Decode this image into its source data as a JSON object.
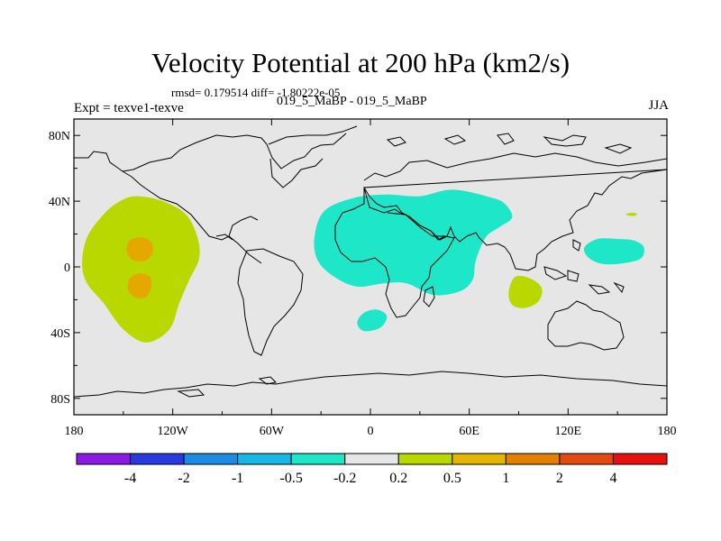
{
  "header": {
    "title": "Velocity Potential at 200 hPa (km2/s)",
    "stats": "rmsd= 0.179514  diff= -1.80222e-05",
    "left_label": "Expt = texve1-texve",
    "center_label": "019_5_MaBP - 019_5_MaBP",
    "right_label": "JJA"
  },
  "colors": {
    "map_bg": "#e6e6e6",
    "coast": "#000000",
    "cyan": "#1ee6c8",
    "yellowgreen": "#b8d800",
    "orange": "#e4a800"
  },
  "chart_data": {
    "type": "contour-map",
    "title": "Velocity Potential at 200 hPa (km2/s)",
    "variable": "velocity potential difference at 200 hPa",
    "units": "km2/s",
    "season": "JJA",
    "xlim": [
      -180,
      180
    ],
    "ylim": [
      -90,
      90
    ],
    "x_ticks": [
      {
        "lon": -180,
        "label": "180"
      },
      {
        "lon": -120,
        "label": "120W"
      },
      {
        "lon": -60,
        "label": "60W"
      },
      {
        "lon": 0,
        "label": "0"
      },
      {
        "lon": 60,
        "label": "60E"
      },
      {
        "lon": 120,
        "label": "120E"
      },
      {
        "lon": 180,
        "label": "180"
      }
    ],
    "y_ticks": [
      {
        "lat": 80,
        "label": "80N"
      },
      {
        "lat": 40,
        "label": "40N"
      },
      {
        "lat": 0,
        "label": "0"
      },
      {
        "lat": -40,
        "label": "40S"
      },
      {
        "lat": -80,
        "label": "80S"
      }
    ],
    "colorbar": {
      "labels": [
        "-4",
        "-2",
        "-1",
        "-0.5",
        "-0.2",
        "0.2",
        "0.5",
        "1",
        "2",
        "4"
      ],
      "colors": [
        "#8c1ae6",
        "#2a3ae0",
        "#1a8ce6",
        "#18b8e6",
        "#1ee6c8",
        "#e6e6e6",
        "#b8d800",
        "#e4b400",
        "#e48000",
        "#e44a10",
        "#e61010"
      ]
    },
    "regions": [
      {
        "name": "central-pacific-positive",
        "level": "0.2 to 0.5",
        "color": "#b8d800",
        "outline": [
          [
            -142,
            43
          ],
          [
            -126,
            40
          ],
          [
            -112,
            32
          ],
          [
            -105,
            18
          ],
          [
            -104,
            5
          ],
          [
            -110,
            -8
          ],
          [
            -116,
            -22
          ],
          [
            -122,
            -38
          ],
          [
            -136,
            -46
          ],
          [
            -150,
            -38
          ],
          [
            -162,
            -22
          ],
          [
            -172,
            -10
          ],
          [
            -175,
            2
          ],
          [
            -172,
            18
          ],
          [
            -162,
            32
          ],
          [
            -152,
            40
          ]
        ]
      },
      {
        "name": "pacific-max-north",
        "level": "0.5 to 1",
        "color": "#e4a800",
        "outline": [
          [
            -140,
            18
          ],
          [
            -134,
            16
          ],
          [
            -132,
            10
          ],
          [
            -136,
            4
          ],
          [
            -144,
            4
          ],
          [
            -148,
            10
          ],
          [
            -146,
            16
          ]
        ]
      },
      {
        "name": "pacific-max-south",
        "level": "0.5 to 1",
        "color": "#e4a800",
        "outline": [
          [
            -140,
            -4
          ],
          [
            -134,
            -6
          ],
          [
            -133,
            -12
          ],
          [
            -136,
            -18
          ],
          [
            -142,
            -19
          ],
          [
            -147,
            -14
          ],
          [
            -146,
            -7
          ]
        ]
      },
      {
        "name": "africa-eurasia-negative",
        "level": "-0.5 to -0.2",
        "color": "#1ee6c8",
        "outline": [
          [
            -28,
            34
          ],
          [
            -10,
            42
          ],
          [
            10,
            44
          ],
          [
            30,
            43
          ],
          [
            50,
            47
          ],
          [
            74,
            42
          ],
          [
            82,
            38
          ],
          [
            86,
            30
          ],
          [
            78,
            24
          ],
          [
            70,
            18
          ],
          [
            64,
            4
          ],
          [
            62,
            -8
          ],
          [
            54,
            -15
          ],
          [
            38,
            -17
          ],
          [
            22,
            -10
          ],
          [
            8,
            -10
          ],
          [
            -8,
            -12
          ],
          [
            -22,
            -6
          ],
          [
            -32,
            4
          ],
          [
            -34,
            18
          ]
        ]
      },
      {
        "name": "indian-ocean-negative",
        "level": "-0.5 to -0.2",
        "color": "#1ee6c8",
        "outline": [
          [
            -4,
            -28
          ],
          [
            4,
            -26
          ],
          [
            10,
            -30
          ],
          [
            6,
            -37
          ],
          [
            -4,
            -39
          ],
          [
            -8,
            -34
          ]
        ]
      },
      {
        "name": "west-pacific-negative",
        "level": "-0.5 to -0.2",
        "color": "#1ee6c8",
        "outline": [
          [
            138,
            17
          ],
          [
            150,
            17
          ],
          [
            160,
            16
          ],
          [
            166,
            12
          ],
          [
            164,
            5
          ],
          [
            152,
            2
          ],
          [
            140,
            2
          ],
          [
            132,
            6
          ],
          [
            130,
            12
          ]
        ]
      },
      {
        "name": "indian-ocean-positive",
        "level": "0.2 to 0.5",
        "color": "#b8d800",
        "outline": [
          [
            88,
            -6
          ],
          [
            97,
            -7
          ],
          [
            104,
            -13
          ],
          [
            102,
            -21
          ],
          [
            94,
            -25
          ],
          [
            86,
            -23
          ],
          [
            84,
            -15
          ]
        ]
      },
      {
        "name": "north-pacific-small-positive",
        "level": "0.2 to 0.5",
        "color": "#b8d800",
        "outline": [
          [
            155,
            32
          ],
          [
            159,
            33
          ],
          [
            162,
            32
          ],
          [
            159,
            31
          ]
        ]
      }
    ]
  }
}
